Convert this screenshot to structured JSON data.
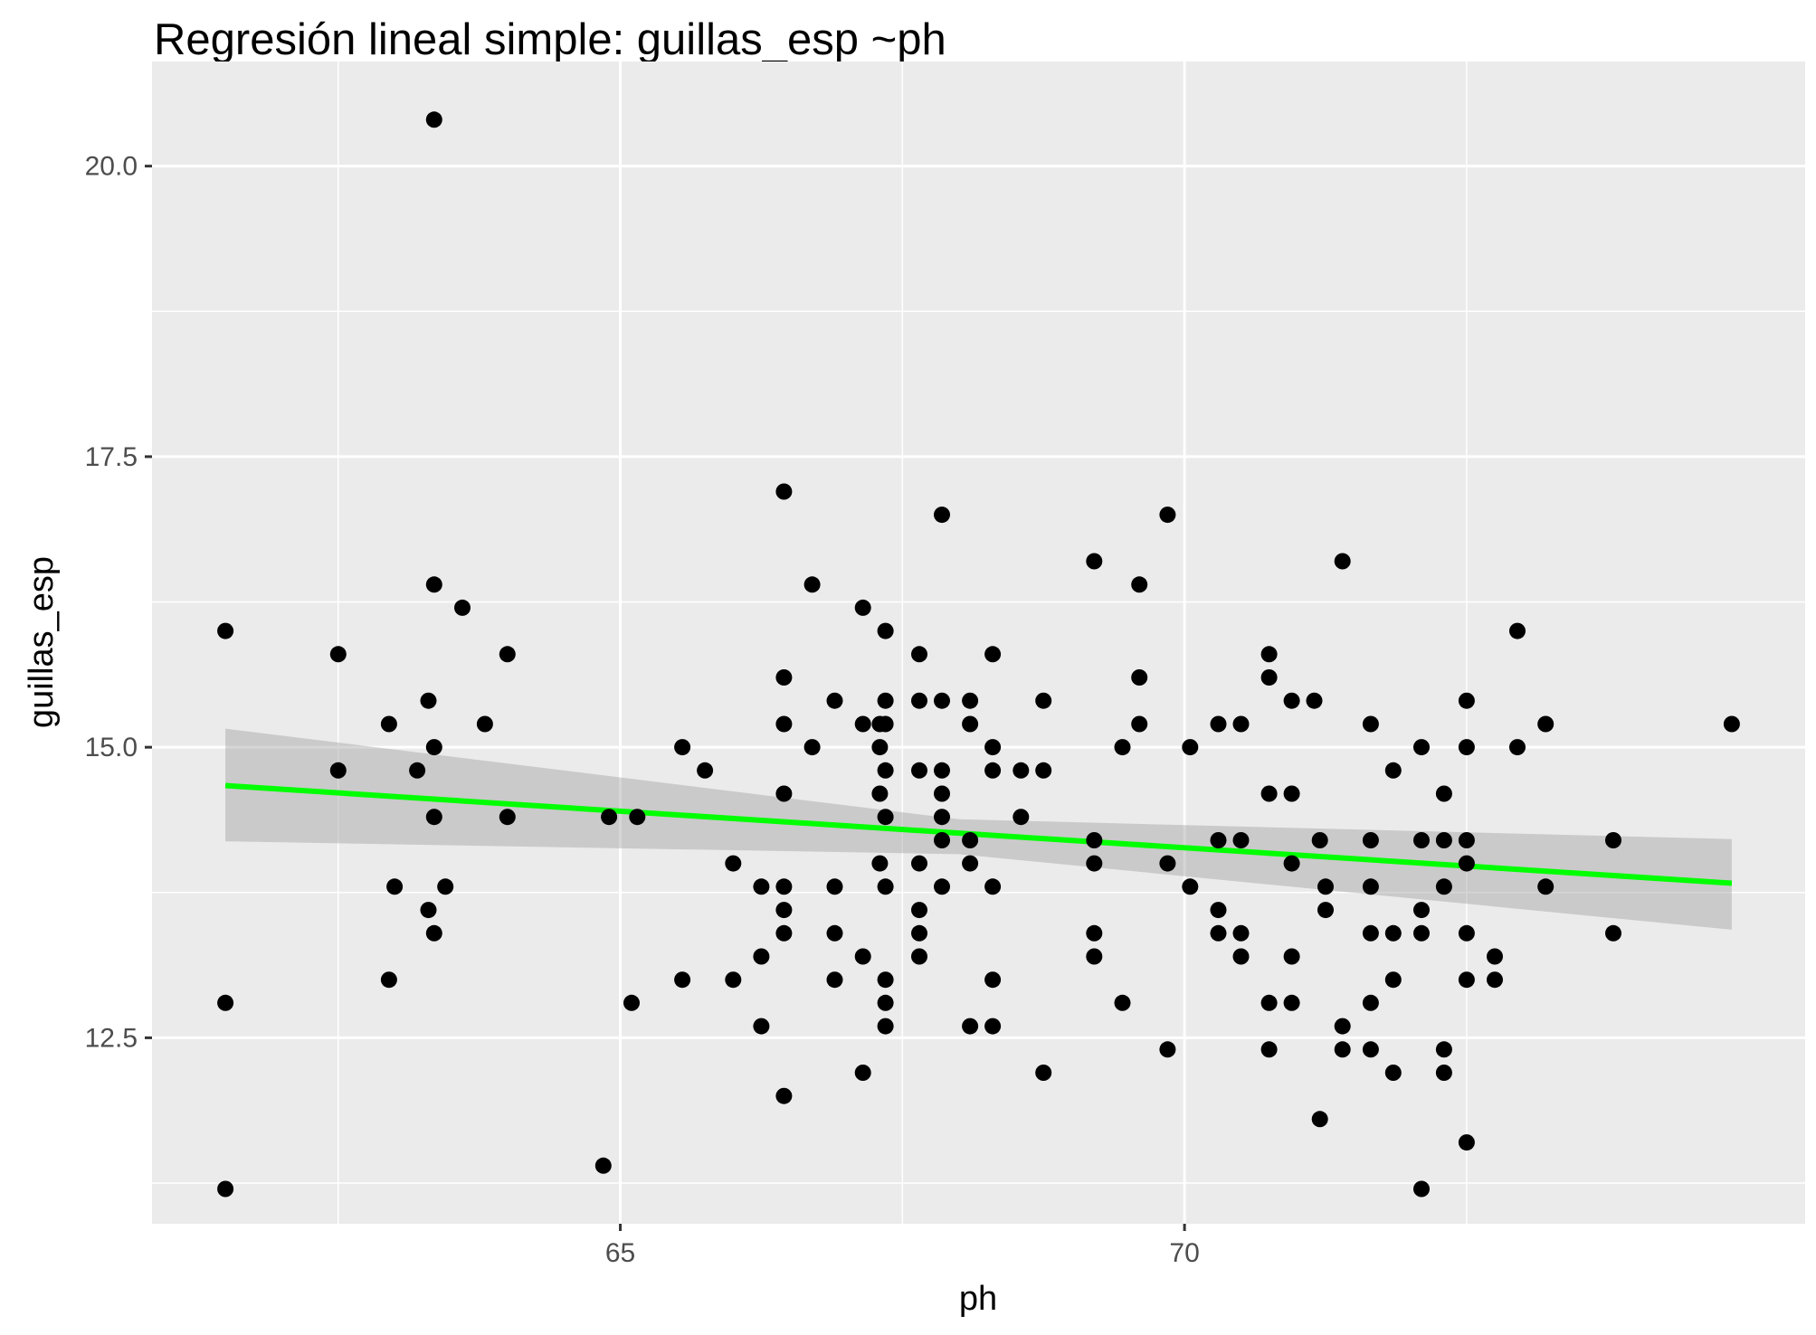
{
  "chart_data": {
    "type": "scatter",
    "title": "Regresión lineal simple:  guillas_esp ~ph",
    "xlabel": "ph",
    "ylabel": "guillas_esp",
    "xlim": [
      60.85,
      75.5
    ],
    "ylim": [
      10.9,
      20.9
    ],
    "x_ticks": [
      65,
      70
    ],
    "x_tick_labels": [
      "65",
      "70"
    ],
    "x_minor_ticks": [
      62.5,
      67.5,
      72.5
    ],
    "y_ticks": [
      12.5,
      15.0,
      17.5,
      20.0
    ],
    "y_tick_labels": [
      "12.5",
      "15.0",
      "17.5",
      "20.0"
    ],
    "y_minor_ticks": [
      11.25,
      13.75,
      16.25,
      18.75
    ],
    "grid": true,
    "points": [
      [
        61.5,
        16.0
      ],
      [
        61.5,
        12.8
      ],
      [
        61.5,
        11.2
      ],
      [
        62.5,
        15.8
      ],
      [
        62.5,
        14.8
      ],
      [
        62.95,
        15.2
      ],
      [
        62.95,
        13.0
      ],
      [
        63.0,
        13.8
      ],
      [
        63.2,
        14.8
      ],
      [
        63.3,
        15.4
      ],
      [
        63.3,
        13.6
      ],
      [
        63.35,
        16.4
      ],
      [
        63.35,
        15.0
      ],
      [
        63.35,
        14.4
      ],
      [
        63.35,
        13.4
      ],
      [
        63.35,
        20.4
      ],
      [
        63.45,
        13.8
      ],
      [
        63.6,
        16.2
      ],
      [
        63.8,
        15.2
      ],
      [
        64.0,
        15.8
      ],
      [
        64.0,
        14.4
      ],
      [
        64.9,
        14.4
      ],
      [
        65.15,
        14.4
      ],
      [
        64.85,
        11.4
      ],
      [
        65.1,
        12.8
      ],
      [
        65.55,
        15.0
      ],
      [
        65.55,
        13.0
      ],
      [
        65.75,
        14.8
      ],
      [
        66.0,
        14.0
      ],
      [
        66.0,
        13.0
      ],
      [
        66.25,
        13.8
      ],
      [
        66.25,
        13.2
      ],
      [
        66.25,
        12.6
      ],
      [
        66.45,
        17.2
      ],
      [
        66.45,
        15.6
      ],
      [
        66.45,
        15.2
      ],
      [
        66.45,
        14.6
      ],
      [
        66.45,
        13.8
      ],
      [
        66.45,
        13.6
      ],
      [
        66.45,
        13.4
      ],
      [
        66.45,
        12.0
      ],
      [
        66.7,
        16.4
      ],
      [
        66.7,
        15.0
      ],
      [
        66.9,
        15.4
      ],
      [
        66.9,
        13.8
      ],
      [
        66.9,
        13.4
      ],
      [
        66.9,
        13.0
      ],
      [
        67.15,
        16.2
      ],
      [
        67.15,
        15.2
      ],
      [
        67.15,
        13.2
      ],
      [
        67.15,
        12.2
      ],
      [
        67.3,
        15.2
      ],
      [
        67.3,
        15.0
      ],
      [
        67.3,
        14.6
      ],
      [
        67.3,
        14.0
      ],
      [
        67.35,
        16.0
      ],
      [
        67.35,
        15.4
      ],
      [
        67.35,
        15.2
      ],
      [
        67.35,
        14.8
      ],
      [
        67.35,
        14.4
      ],
      [
        67.35,
        13.8
      ],
      [
        67.35,
        13.0
      ],
      [
        67.35,
        12.8
      ],
      [
        67.35,
        12.6
      ],
      [
        67.65,
        15.8
      ],
      [
        67.65,
        15.4
      ],
      [
        67.65,
        14.8
      ],
      [
        67.65,
        14.0
      ],
      [
        67.65,
        13.6
      ],
      [
        67.65,
        13.4
      ],
      [
        67.65,
        13.2
      ],
      [
        67.85,
        17.0
      ],
      [
        67.85,
        15.4
      ],
      [
        67.85,
        14.8
      ],
      [
        67.85,
        14.6
      ],
      [
        67.85,
        14.4
      ],
      [
        67.85,
        14.2
      ],
      [
        67.85,
        13.8
      ],
      [
        68.1,
        15.4
      ],
      [
        68.1,
        15.2
      ],
      [
        68.1,
        14.2
      ],
      [
        68.1,
        14.0
      ],
      [
        68.1,
        12.6
      ],
      [
        68.3,
        15.8
      ],
      [
        68.3,
        15.0
      ],
      [
        68.3,
        14.8
      ],
      [
        68.3,
        13.8
      ],
      [
        68.3,
        13.0
      ],
      [
        68.3,
        12.6
      ],
      [
        68.55,
        14.8
      ],
      [
        68.55,
        14.4
      ],
      [
        68.75,
        15.4
      ],
      [
        68.75,
        14.8
      ],
      [
        68.75,
        12.2
      ],
      [
        69.2,
        16.6
      ],
      [
        69.2,
        14.2
      ],
      [
        69.2,
        14.0
      ],
      [
        69.2,
        13.4
      ],
      [
        69.2,
        13.2
      ],
      [
        69.45,
        15.0
      ],
      [
        69.45,
        12.8
      ],
      [
        69.6,
        16.4
      ],
      [
        69.6,
        15.6
      ],
      [
        69.6,
        15.2
      ],
      [
        69.85,
        17.0
      ],
      [
        69.85,
        14.0
      ],
      [
        69.85,
        12.4
      ],
      [
        70.05,
        15.0
      ],
      [
        70.05,
        13.8
      ],
      [
        70.3,
        15.2
      ],
      [
        70.3,
        14.2
      ],
      [
        70.3,
        13.6
      ],
      [
        70.3,
        13.4
      ],
      [
        70.5,
        15.2
      ],
      [
        70.5,
        14.2
      ],
      [
        70.5,
        13.4
      ],
      [
        70.5,
        13.2
      ],
      [
        70.75,
        15.8
      ],
      [
        70.75,
        15.6
      ],
      [
        70.75,
        14.6
      ],
      [
        70.75,
        12.8
      ],
      [
        70.75,
        12.4
      ],
      [
        70.95,
        15.4
      ],
      [
        70.95,
        14.6
      ],
      [
        70.95,
        14.0
      ],
      [
        70.95,
        13.2
      ],
      [
        70.95,
        12.8
      ],
      [
        71.15,
        15.4
      ],
      [
        71.2,
        14.2
      ],
      [
        71.2,
        11.8
      ],
      [
        71.25,
        13.8
      ],
      [
        71.25,
        13.6
      ],
      [
        71.4,
        16.6
      ],
      [
        71.4,
        12.6
      ],
      [
        71.4,
        12.4
      ],
      [
        71.65,
        15.2
      ],
      [
        71.65,
        14.2
      ],
      [
        71.65,
        13.8
      ],
      [
        71.65,
        13.4
      ],
      [
        71.65,
        12.8
      ],
      [
        71.65,
        12.4
      ],
      [
        71.85,
        14.8
      ],
      [
        71.85,
        13.4
      ],
      [
        71.85,
        13.0
      ],
      [
        71.85,
        12.2
      ],
      [
        72.1,
        15.0
      ],
      [
        72.1,
        14.2
      ],
      [
        72.1,
        13.6
      ],
      [
        72.1,
        13.4
      ],
      [
        72.1,
        11.2
      ],
      [
        72.3,
        14.6
      ],
      [
        72.3,
        14.2
      ],
      [
        72.3,
        13.8
      ],
      [
        72.3,
        12.4
      ],
      [
        72.3,
        12.2
      ],
      [
        72.5,
        15.4
      ],
      [
        72.5,
        15.0
      ],
      [
        72.5,
        14.2
      ],
      [
        72.5,
        14.0
      ],
      [
        72.5,
        13.4
      ],
      [
        72.5,
        13.0
      ],
      [
        72.5,
        11.6
      ],
      [
        72.75,
        13.2
      ],
      [
        72.75,
        13.0
      ],
      [
        72.95,
        16.0
      ],
      [
        72.95,
        15.0
      ],
      [
        73.2,
        15.2
      ],
      [
        73.2,
        13.8
      ],
      [
        73.8,
        14.2
      ],
      [
        73.8,
        13.4
      ],
      [
        74.85,
        15.2
      ]
    ],
    "regression_line": {
      "x": [
        61.5,
        74.85
      ],
      "y": [
        14.67,
        13.83
      ],
      "color": "#00ff00"
    },
    "confidence_band": {
      "x": [
        61.5,
        68.0,
        74.85
      ],
      "lower": [
        14.19,
        14.08,
        13.43
      ],
      "upper": [
        15.16,
        14.38,
        14.21
      ],
      "color": "#999999"
    },
    "colors": {
      "panel": "#ebebeb",
      "grid": "#ffffff",
      "points": "#000000"
    }
  }
}
